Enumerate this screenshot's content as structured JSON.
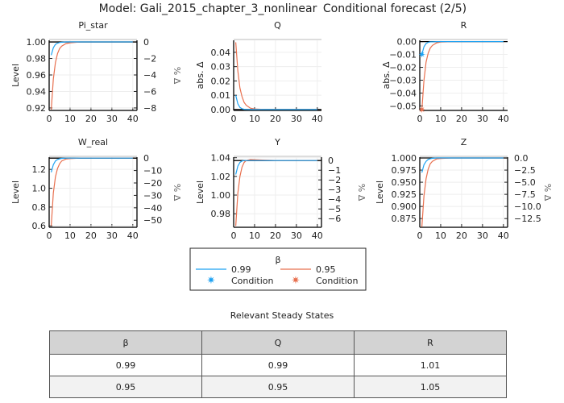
{
  "title_left": "Model: Gali_2015_chapter_3_nonlinear",
  "title_right": "Conditional forecast  (2/5)",
  "colors": {
    "series_0.99": "#1fa2f2",
    "series_0.95": "#e8704f",
    "steady_state": "#000000"
  },
  "chart_data": [
    {
      "type": "line",
      "title": "Pi_star",
      "ylabel": "Level",
      "ylabel_right": "% Δ",
      "xlim": [
        0,
        42
      ],
      "xticks": [
        0,
        10,
        20,
        30,
        40
      ],
      "ylim": [
        0.917,
        1.002
      ],
      "yticks": [
        "1.00",
        "0.98",
        "0.96",
        "0.94",
        "0.92"
      ],
      "ytick_values": [
        1.0,
        0.98,
        0.96,
        0.94,
        0.92
      ],
      "right_ticks": [
        "0",
        "−2",
        "−4",
        "−6",
        "−8"
      ],
      "right_tick_values": [
        0,
        -2,
        -4,
        -6,
        -8
      ],
      "steady_state": 1.0,
      "x": [
        1,
        2,
        3,
        4,
        5,
        6,
        8,
        10,
        15,
        20,
        30,
        40
      ],
      "series": [
        {
          "name": "0.99",
          "values": [
            0.984,
            0.993,
            0.997,
            0.9986,
            0.9994,
            0.9997,
            1.0,
            1.0,
            1.0,
            1.0,
            1.0,
            1.0
          ]
        },
        {
          "name": "0.95",
          "values": [
            0.918,
            0.955,
            0.975,
            0.986,
            0.992,
            0.995,
            0.998,
            0.999,
            1.0,
            1.0,
            1.0,
            1.0
          ]
        }
      ]
    },
    {
      "type": "line",
      "title": "Q",
      "ylabel": "abs. Δ",
      "ylabel_right": "",
      "xlim": [
        0,
        42
      ],
      "xticks": [
        0,
        10,
        20,
        30,
        40
      ],
      "ylim": [
        -0.0006,
        0.0484
      ],
      "yticks": [
        "0.04",
        "0.03",
        "0.02",
        "0.01",
        "0.00"
      ],
      "ytick_values": [
        0.04,
        0.03,
        0.02,
        0.01,
        0.0
      ],
      "steady_state": 0.0,
      "x": [
        1,
        2,
        3,
        4,
        5,
        6,
        8,
        10,
        15,
        20,
        30,
        40
      ],
      "series": [
        {
          "name": "0.99",
          "values": [
            0.01,
            0.004,
            0.0015,
            0.0006,
            0.0002,
            0.0001,
            0,
            0,
            0,
            0,
            0,
            0
          ]
        },
        {
          "name": "0.95",
          "values": [
            0.047,
            0.027,
            0.015,
            0.009,
            0.005,
            0.003,
            0.001,
            0.0004,
            0.0001,
            0,
            0,
            0
          ]
        }
      ]
    },
    {
      "type": "line",
      "title": "R",
      "ylabel": "abs. Δ",
      "ylabel_right": "",
      "xlim": [
        0,
        42
      ],
      "xticks": [
        0,
        10,
        20,
        30,
        40
      ],
      "ylim": [
        -0.0535,
        0.001
      ],
      "yticks": [
        "0.00",
        "−0.01",
        "−0.02",
        "−0.03",
        "−0.04",
        "−0.05"
      ],
      "ytick_values": [
        0,
        -0.01,
        -0.02,
        -0.03,
        -0.04,
        -0.05
      ],
      "steady_state": 0.0,
      "x": [
        1,
        2,
        3,
        4,
        5,
        6,
        8,
        10,
        15,
        20,
        30,
        40
      ],
      "series": [
        {
          "name": "0.99",
          "values": [
            -0.01,
            -0.004,
            -0.0015,
            -0.0006,
            -0.0002,
            -0.0001,
            0,
            0,
            0,
            0,
            0,
            0
          ],
          "condition": {
            "x": 1,
            "y": -0.01
          }
        },
        {
          "name": "0.95",
          "values": [
            -0.053,
            -0.03,
            -0.016,
            -0.009,
            -0.005,
            -0.003,
            -0.001,
            -0.0004,
            -0.0001,
            0,
            0,
            0
          ],
          "condition": {
            "x": 1,
            "y": -0.053
          }
        }
      ]
    },
    {
      "type": "line",
      "title": "W_real",
      "ylabel": "Level",
      "ylabel_right": "% Δ",
      "xlim": [
        0,
        42
      ],
      "xticks": [
        0,
        10,
        20,
        30,
        40
      ],
      "ylim": [
        0.585,
        1.33
      ],
      "yticks": [
        "1.2",
        "1.0",
        "0.8",
        "0.6"
      ],
      "ytick_values": [
        1.2,
        1.0,
        0.8,
        0.6
      ],
      "right_ticks": [
        "0",
        "−10",
        "−20",
        "−30",
        "−40",
        "−50"
      ],
      "right_tick_values": [
        0,
        -10,
        -20,
        -30,
        -40,
        -50
      ],
      "steady_state": 1.32,
      "x": [
        1,
        2,
        3,
        4,
        5,
        6,
        8,
        10,
        15,
        20,
        30,
        40
      ],
      "series": [
        {
          "name": "0.99",
          "values": [
            1.17,
            1.25,
            1.29,
            1.305,
            1.313,
            1.317,
            1.32,
            1.32,
            1.32,
            1.32,
            1.32,
            1.32
          ]
        },
        {
          "name": "0.95",
          "values": [
            0.6,
            0.95,
            1.12,
            1.21,
            1.26,
            1.29,
            1.31,
            1.315,
            1.32,
            1.32,
            1.32,
            1.32
          ]
        }
      ]
    },
    {
      "type": "line",
      "title": "Y",
      "ylabel": "Level",
      "ylabel_right": "% Δ",
      "xlim": [
        0,
        42
      ],
      "xticks": [
        0,
        10,
        20,
        30,
        40
      ],
      "ylim": [
        0.9655,
        1.0406
      ],
      "yticks": [
        "1.04",
        "1.02",
        "1.00",
        "0.98"
      ],
      "ytick_values": [
        1.04,
        1.02,
        1.0,
        0.98
      ],
      "right_ticks": [
        "0",
        "−1",
        "−2",
        "−3",
        "−4",
        "−5",
        "−6"
      ],
      "right_tick_values": [
        0,
        -1,
        -2,
        -3,
        -4,
        -5,
        -6
      ],
      "steady_state": 1.037,
      "x": [
        1,
        2,
        3,
        4,
        5,
        6,
        8,
        10,
        15,
        20,
        30,
        40
      ],
      "series": [
        {
          "name": "0.99",
          "values": [
            1.022,
            1.031,
            1.035,
            1.0365,
            1.037,
            1.037,
            1.037,
            1.037,
            1.037,
            1.037,
            1.037,
            1.037
          ]
        },
        {
          "name": "0.95",
          "values": [
            0.967,
            1.002,
            1.02,
            1.03,
            1.035,
            1.037,
            1.038,
            1.0378,
            1.0374,
            1.0371,
            1.037,
            1.037
          ]
        }
      ]
    },
    {
      "type": "line",
      "title": "Z",
      "ylabel": "Level",
      "ylabel_right": "% Δ",
      "xlim": [
        0,
        42
      ],
      "xticks": [
        0,
        10,
        20,
        30,
        40
      ],
      "ylim": [
        0.857,
        1.0017
      ],
      "yticks": [
        "1.000",
        "0.975",
        "0.950",
        "0.925",
        "0.900",
        "0.875"
      ],
      "ytick_values": [
        1.0,
        0.975,
        0.95,
        0.925,
        0.9,
        0.875
      ],
      "right_ticks": [
        "0.0",
        "−2.5",
        "−5.0",
        "−7.5",
        "−10.0",
        "−12.5"
      ],
      "right_tick_values": [
        0,
        -2.5,
        -5,
        -7.5,
        -10,
        -12.5
      ],
      "steady_state": 1.0,
      "x": [
        1,
        2,
        3,
        4,
        5,
        6,
        8,
        10,
        15,
        20,
        30,
        40
      ],
      "series": [
        {
          "name": "0.99",
          "values": [
            0.97,
            0.986,
            0.993,
            0.997,
            0.9985,
            0.9993,
            1.0,
            1.0,
            1.0,
            1.0,
            1.0,
            1.0
          ]
        },
        {
          "name": "0.95",
          "values": [
            0.858,
            0.922,
            0.957,
            0.977,
            0.988,
            0.993,
            0.998,
            0.999,
            1.0,
            1.0,
            1.0,
            1.0
          ]
        }
      ]
    }
  ],
  "legend": {
    "title": "β",
    "entries": [
      {
        "label": "0.99",
        "marker_label": "Condition"
      },
      {
        "label": "0.95",
        "marker_label": "Condition"
      }
    ]
  },
  "table": {
    "title": "Relevant Steady States",
    "headers": [
      "β",
      "Q",
      "R"
    ],
    "rows": [
      [
        "0.99",
        "0.99",
        "1.01"
      ],
      [
        "0.95",
        "0.95",
        "1.05"
      ]
    ]
  }
}
